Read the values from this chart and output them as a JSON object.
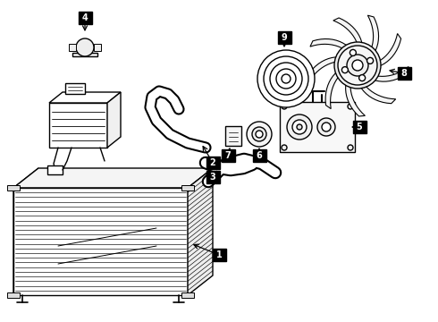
{
  "bg_color": "#ffffff",
  "line_color": "#000000",
  "label_bg": "#000000",
  "label_fg": "#ffffff",
  "fig_width": 4.9,
  "fig_height": 3.6,
  "dpi": 100
}
